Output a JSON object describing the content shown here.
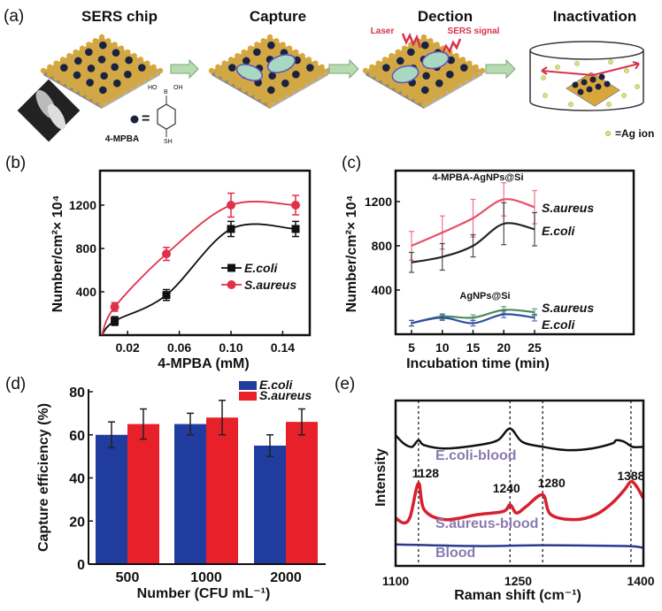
{
  "panel_a": {
    "label": "(a)",
    "steps": [
      "SERS chip",
      "Capture",
      "Dection",
      "Inactivation"
    ],
    "laser": "Laser",
    "sers_signal": "SERS signal",
    "molecule_name": "4-MPBA",
    "molecule_ho": "HO",
    "molecule_b": "B",
    "molecule_oh": "OH",
    "molecule_sh": "SH",
    "equals": "=",
    "ag_ion": "=Ag ion",
    "colors": {
      "gold": "#d9a63a",
      "dark_np": "#1b2240",
      "arrow": "#b8dcb0",
      "laser": "#d8324a",
      "ag_ion": "#d6e27a",
      "bacteria": "#a8d8c0"
    }
  },
  "chart_data": [
    {
      "panel_label": "(b)",
      "type": "line",
      "xlabel": "4-MPBA (mM)",
      "ylabel": "Number/cm²× 10⁴",
      "xlim": [
        0,
        0.16
      ],
      "ylim": [
        0,
        1520
      ],
      "xticks": [
        "0.02",
        "0.06",
        "0.10",
        "0.14"
      ],
      "yticks": [
        "400",
        "800",
        "1200"
      ],
      "legend": "right",
      "series": [
        {
          "name": "E.coli",
          "color": "#111111",
          "marker": "square",
          "x": [
            0.01,
            0.05,
            0.1,
            0.15
          ],
          "y": [
            130,
            370,
            980,
            980
          ],
          "err": [
            40,
            50,
            70,
            70
          ]
        },
        {
          "name": "S.aureus",
          "color": "#e0304a",
          "marker": "circle",
          "x": [
            0.01,
            0.05,
            0.1,
            0.15
          ],
          "y": [
            260,
            750,
            1200,
            1200
          ],
          "err": [
            40,
            60,
            110,
            90
          ]
        }
      ]
    },
    {
      "panel_label": "(c)",
      "type": "line",
      "xlabel": "Incubation time (min)",
      "ylabel": "Number/cm²× 10⁴",
      "xlim": [
        2.4,
        41
      ],
      "ylim": [
        0,
        1480
      ],
      "xticks": [
        "5",
        "10",
        "15",
        "20",
        "25"
      ],
      "yticks": [
        "400",
        "800",
        "1200"
      ],
      "groups": [
        "4-MPBA-AgNPs@Si",
        "AgNPs@Si"
      ],
      "series": [
        {
          "name": "S.aureus",
          "group": "4-MPBA-AgNPs@Si",
          "color": "#e8506a",
          "x": [
            5,
            10,
            15,
            20,
            25
          ],
          "y": [
            800,
            920,
            1050,
            1220,
            1150
          ],
          "err": [
            130,
            150,
            170,
            150,
            150
          ]
        },
        {
          "name": "E.coli",
          "group": "4-MPBA-AgNPs@Si",
          "color": "#222222",
          "x": [
            5,
            10,
            15,
            20,
            25
          ],
          "y": [
            650,
            700,
            800,
            1000,
            950
          ],
          "err": [
            90,
            120,
            100,
            190,
            150
          ]
        },
        {
          "name": "S.aureus",
          "group": "AgNPs@Si",
          "color": "#4c8a5a",
          "x": [
            5,
            10,
            15,
            20,
            25
          ],
          "y": [
            100,
            160,
            150,
            220,
            200
          ],
          "err": [
            25,
            25,
            25,
            30,
            30
          ]
        },
        {
          "name": "E.coli",
          "group": "AgNPs@Si",
          "color": "#3050a0",
          "x": [
            5,
            10,
            15,
            20,
            25
          ],
          "y": [
            100,
            150,
            100,
            180,
            150
          ],
          "err": [
            25,
            25,
            25,
            30,
            30
          ]
        }
      ]
    },
    {
      "panel_label": "(d)",
      "type": "bar",
      "xlabel": "Number (CFU mL⁻¹)",
      "ylabel": "Capture efficiency (%)",
      "categories": [
        "500",
        "1000",
        "2000"
      ],
      "ylim": [
        0,
        80
      ],
      "yticks": [
        "0",
        "20",
        "40",
        "60",
        "80"
      ],
      "legend": "top-right",
      "series": [
        {
          "name": "E.coli",
          "color": "#1f3c9e",
          "values": [
            60,
            65,
            55
          ],
          "err": [
            6,
            5,
            5
          ]
        },
        {
          "name": "S.aureus",
          "color": "#e8202a",
          "values": [
            65,
            68,
            66
          ],
          "err": [
            7,
            8,
            6
          ]
        }
      ]
    },
    {
      "panel_label": "(e)",
      "type": "line",
      "xlabel": "Raman shift (cm⁻¹)",
      "ylabel": "Intensity",
      "xlim": [
        1100,
        1403
      ],
      "ylim": [
        0,
        10
      ],
      "xticks": [
        "1100",
        "1250",
        "1400"
      ],
      "peaks": [
        "1128",
        "1240",
        "1280",
        "1388"
      ],
      "series": [
        {
          "name": "E.coli-blood",
          "color": "#111111",
          "points": [
            [
              1100,
              7.9
            ],
            [
              1110,
              7.4
            ],
            [
              1120,
              7.2
            ],
            [
              1128,
              7.6
            ],
            [
              1135,
              7.3
            ],
            [
              1160,
              7.1
            ],
            [
              1200,
              7.3
            ],
            [
              1225,
              7.6
            ],
            [
              1240,
              8.3
            ],
            [
              1255,
              7.5
            ],
            [
              1280,
              7.2
            ],
            [
              1310,
              7.0
            ],
            [
              1340,
              7.1
            ],
            [
              1365,
              7.4
            ],
            [
              1370,
              7.6
            ],
            [
              1380,
              7.5
            ],
            [
              1390,
              7.2
            ],
            [
              1403,
              7.2
            ]
          ]
        },
        {
          "name": "S.aureus-blood",
          "color": "#d8202e",
          "points": [
            [
              1100,
              2.9
            ],
            [
              1110,
              2.6
            ],
            [
              1118,
              3.0
            ],
            [
              1128,
              5.0
            ],
            [
              1135,
              3.4
            ],
            [
              1160,
              2.8
            ],
            [
              1200,
              3.1
            ],
            [
              1232,
              3.3
            ],
            [
              1240,
              3.7
            ],
            [
              1248,
              3.2
            ],
            [
              1260,
              3.6
            ],
            [
              1280,
              4.3
            ],
            [
              1290,
              3.1
            ],
            [
              1320,
              2.8
            ],
            [
              1345,
              3.1
            ],
            [
              1365,
              3.8
            ],
            [
              1380,
              4.6
            ],
            [
              1388,
              5.1
            ],
            [
              1395,
              4.8
            ],
            [
              1403,
              4.1
            ]
          ]
        },
        {
          "name": "Blood",
          "color": "#2a3a8c",
          "points": [
            [
              1100,
              1.3
            ],
            [
              1200,
              1.2
            ],
            [
              1280,
              1.25
            ],
            [
              1380,
              1.2
            ],
            [
              1403,
              1.1
            ]
          ]
        }
      ],
      "series_label_color": "#8a7ab0"
    }
  ]
}
